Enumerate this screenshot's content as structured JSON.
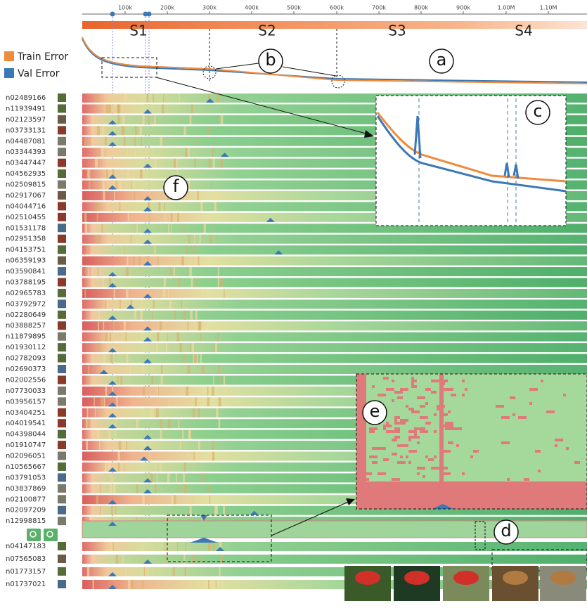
{
  "axis": {
    "ticks": [
      "100k",
      "200k",
      "300k",
      "400k",
      "500k",
      "600k",
      "700k",
      "800k",
      "900k",
      "1.00M",
      "1.10M"
    ]
  },
  "stages": [
    "S1",
    "S2",
    "S3",
    "S4"
  ],
  "legend": [
    "Train Error",
    "Val Error"
  ],
  "annotations": [
    "a",
    "b",
    "c",
    "d",
    "e",
    "f"
  ],
  "classes": [
    "n02489166",
    "n11939491",
    "n02123597",
    "n03733131",
    "n04487081",
    "n03344393",
    "n03447447",
    "n04562935",
    "n02509815",
    "n02917067",
    "n04044716",
    "n02510455",
    "n01531178",
    "n02951358",
    "n04153751",
    "n06359193",
    "n03590841",
    "n03788195",
    "n02965783",
    "n03792972",
    "n02280649",
    "n03888257",
    "n11879895",
    "n01930112",
    "n02782093",
    "n02690373",
    "n02002556",
    "n07730033",
    "n03956157",
    "n03404251",
    "n04019541",
    "n04398044",
    "n01910747",
    "n02096051",
    "n10565667",
    "n03791053",
    "n03837869",
    "n02100877",
    "n02097209",
    "n12998815"
  ],
  "extra_classes": [
    "n04147183",
    "n07565083",
    "n01773157",
    "n01737021"
  ]
}
